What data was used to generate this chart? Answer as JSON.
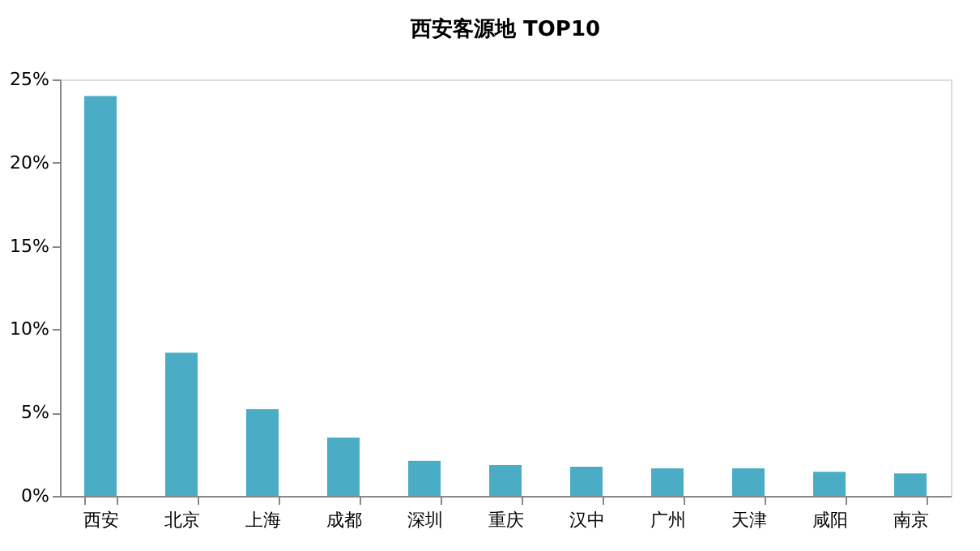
{
  "chart_data": {
    "type": "bar",
    "title": "西安客源地 TOP10",
    "categories": [
      "西安",
      "北京",
      "上海",
      "成都",
      "深圳",
      "重庆",
      "汉中",
      "广州",
      "天津",
      "咸阳",
      "南京"
    ],
    "values": [
      24.0,
      8.6,
      5.2,
      3.5,
      2.1,
      1.85,
      1.75,
      1.65,
      1.65,
      1.45,
      1.35
    ],
    "color": "#4bacc6",
    "ylim": [
      0,
      25
    ],
    "yticks": [
      {
        "value": 0,
        "label": "0%"
      },
      {
        "value": 5,
        "label": "5%"
      },
      {
        "value": 10,
        "label": "10%"
      },
      {
        "value": 15,
        "label": "15%"
      },
      {
        "value": 20,
        "label": "20%"
      },
      {
        "value": 25,
        "label": "25%"
      }
    ],
    "grid": false
  }
}
